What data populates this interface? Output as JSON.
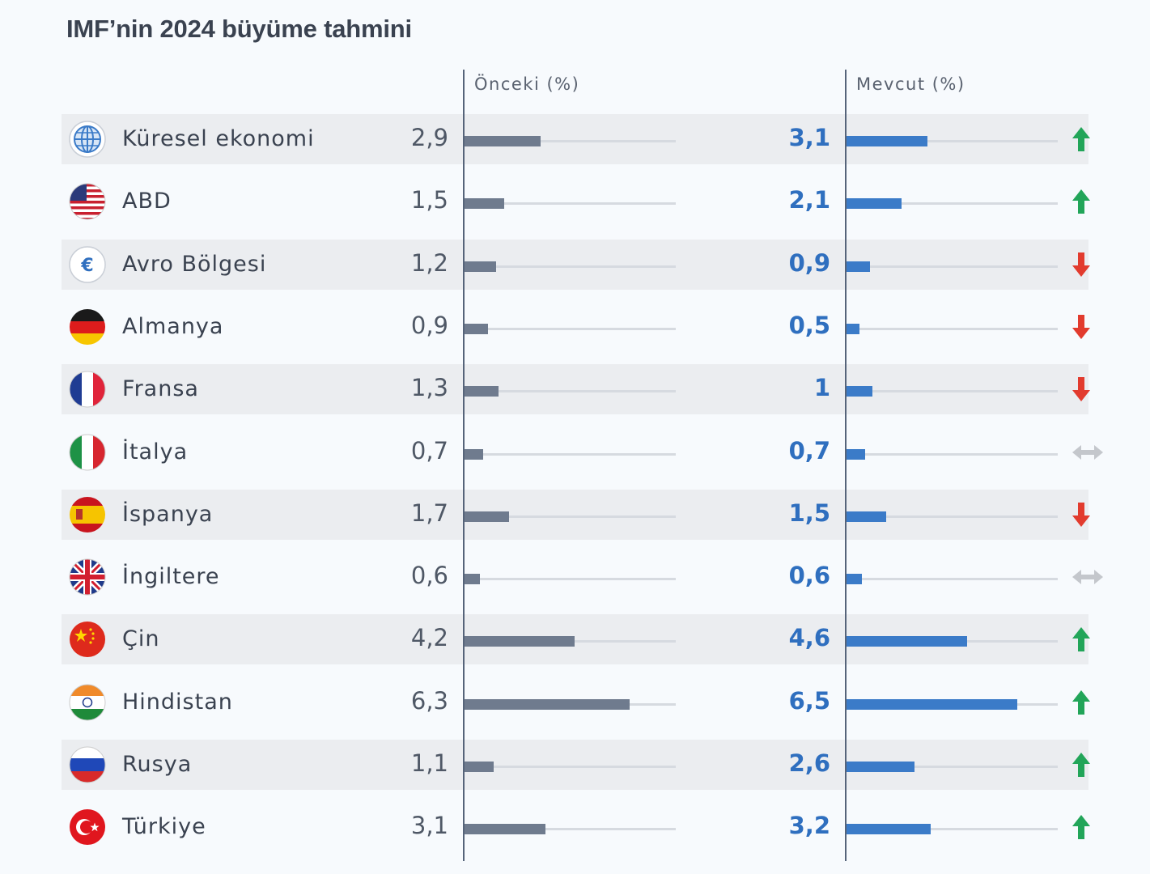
{
  "title": "IMF’nin 2024 büyüme tahmini",
  "column_headers": {
    "previous": "Önceki (%)",
    "current": "Mevcut (%)"
  },
  "colors": {
    "previous_bar": "#6f7b8e",
    "current_bar": "#3b7bc8",
    "current_value_text": "#2f6fbf",
    "up_arrow": "#22a559",
    "down_arrow": "#e23b2e",
    "flat_arrow": "#c4c7cc"
  },
  "chart_data": {
    "type": "bar",
    "orientation": "horizontal",
    "title": "IMF’nin 2024 büyüme tahmini",
    "categories": [
      "Küresel ekonomi",
      "ABD",
      "Avro Bölgesi",
      "Almanya",
      "Fransa",
      "İtalya",
      "İspanya",
      "İngiltere",
      "Çin",
      "Hindistan",
      "Rusya",
      "Türkiye"
    ],
    "series": [
      {
        "name": "Önceki (%)",
        "values": [
          2.9,
          1.5,
          1.2,
          0.9,
          1.3,
          0.7,
          1.7,
          0.6,
          4.2,
          6.3,
          1.1,
          3.1
        ],
        "labels": [
          "2,9",
          "1,5",
          "1,2",
          "0,9",
          "1,3",
          "0,7",
          "1,7",
          "0,6",
          "4,2",
          "6,3",
          "1,1",
          "3,1"
        ]
      },
      {
        "name": "Mevcut (%)",
        "values": [
          3.1,
          2.1,
          0.9,
          0.5,
          1.0,
          0.7,
          1.5,
          0.6,
          4.6,
          6.5,
          2.6,
          3.2
        ],
        "labels": [
          "3,1",
          "2,1",
          "0,9",
          "0,5",
          "1",
          "0,7",
          "1,5",
          "0,6",
          "4,6",
          "6,5",
          "2,6",
          "3,2"
        ]
      }
    ],
    "change": [
      "up",
      "up",
      "down",
      "down",
      "down",
      "flat",
      "down",
      "flat",
      "up",
      "up",
      "up",
      "up"
    ],
    "flags": [
      "globe-icon",
      "us-flag-icon",
      "euro-icon",
      "germany-flag-icon",
      "france-flag-icon",
      "italy-flag-icon",
      "spain-flag-icon",
      "uk-flag-icon",
      "china-flag-icon",
      "india-flag-icon",
      "russia-flag-icon",
      "turkey-flag-icon"
    ],
    "xlim": [
      0,
      8
    ],
    "xlabel": "",
    "ylabel": "",
    "grid": false,
    "legend": "top column headers"
  }
}
